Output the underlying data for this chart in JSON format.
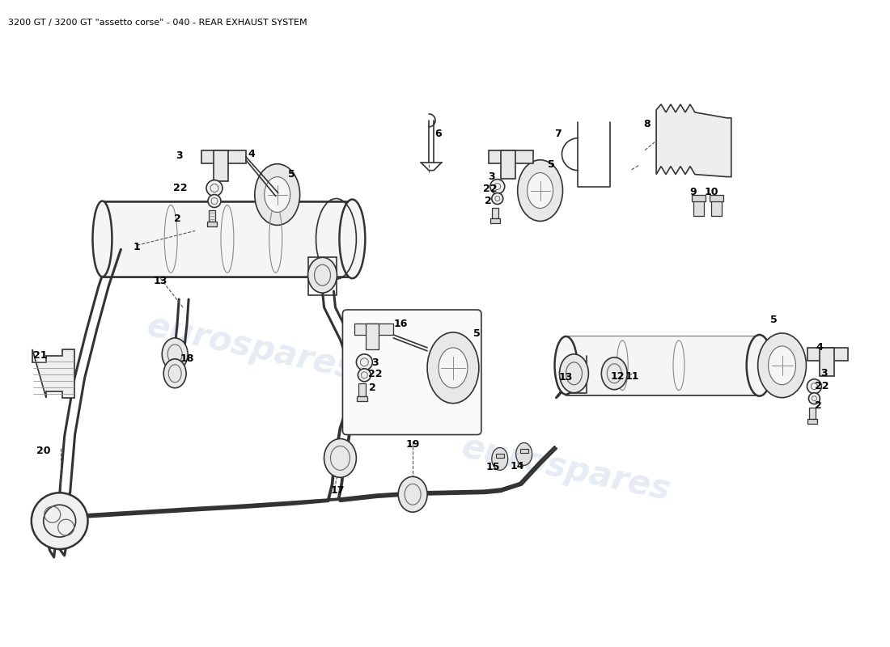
{
  "title": "3200 GT / 3200 GT \"assetto corse\" - 040 - REAR EXHAUST SYSTEM",
  "title_fontsize": 8.0,
  "background_color": "#ffffff",
  "fig_width": 11.0,
  "fig_height": 8.0,
  "dpi": 100
}
